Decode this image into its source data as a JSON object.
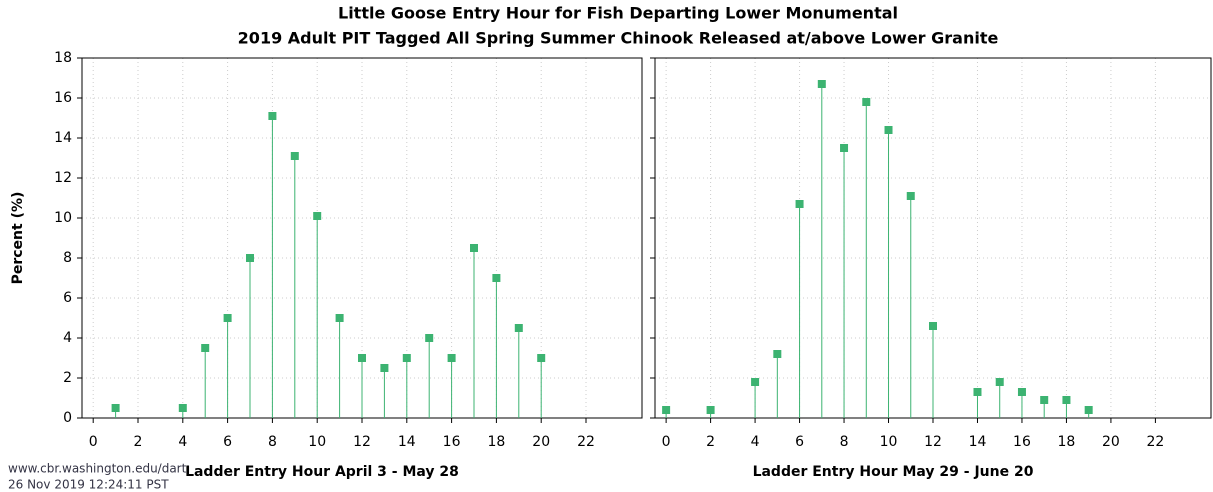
{
  "chart_data": [
    {
      "type": "stem",
      "title": "Little Goose Entry Hour for Fish Departing Lower Monumental",
      "subtitle": "2019 Adult PIT Tagged All Spring Summer Chinook Released at/above Lower Granite",
      "y_label": "Percent (%)",
      "x_label": "Ladder Entry Hour April 3 - May 28",
      "color": "#3cb371",
      "x": [
        1,
        4,
        5,
        6,
        7,
        8,
        9,
        10,
        11,
        12,
        13,
        14,
        15,
        16,
        17,
        18,
        19,
        20
      ],
      "values": [
        0.5,
        0.5,
        3.5,
        5,
        8,
        15.1,
        13.1,
        10.1,
        5,
        3,
        2.5,
        3,
        4,
        3,
        8.5,
        7,
        4.5,
        3
      ],
      "xlim": [
        -0.5,
        24.5
      ],
      "xticks": [
        0,
        2,
        4,
        6,
        8,
        10,
        12,
        14,
        16,
        18,
        20,
        22
      ],
      "ylim": [
        0,
        18
      ],
      "yticks": [
        0,
        2,
        4,
        6,
        8,
        10,
        12,
        14,
        16,
        18
      ],
      "grid": true
    },
    {
      "type": "stem",
      "x_label": "Ladder Entry Hour May 29 - June 20",
      "color": "#3cb371",
      "x": [
        0,
        2,
        4,
        5,
        6,
        7,
        8,
        9,
        10,
        11,
        12,
        14,
        15,
        16,
        17,
        18,
        19
      ],
      "values": [
        0.4,
        0.4,
        1.8,
        3.2,
        10.7,
        16.7,
        13.5,
        15.8,
        14.4,
        11.1,
        4.6,
        1.3,
        1.8,
        1.3,
        0.9,
        0.9,
        0.4
      ],
      "xlim": [
        -0.5,
        24.5
      ],
      "xticks": [
        0,
        2,
        4,
        6,
        8,
        10,
        12,
        14,
        16,
        18,
        20,
        22
      ],
      "ylim": [
        0,
        18
      ],
      "yticks": [
        0,
        2,
        4,
        6,
        8,
        10,
        12,
        14,
        16,
        18
      ],
      "grid": true
    }
  ],
  "footer": [
    "www.cbr.washington.edu/dart",
    "26 Nov 2019 12:24:11 PST"
  ]
}
